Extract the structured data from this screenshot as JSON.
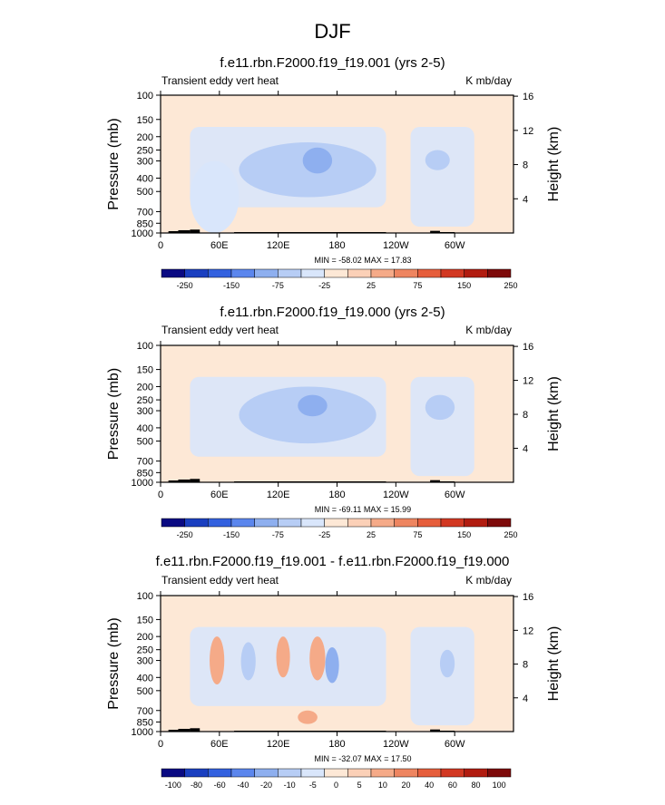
{
  "page": {
    "title": "DJF"
  },
  "chart_data": [
    {
      "type": "heatmap",
      "title": "f.e11.rbn.F2000.f19_f19.001 (yrs 2-5)",
      "left_label": "Transient eddy vert heat",
      "right_label": "K mb/day",
      "ylabel": "Pressure (mb)",
      "y2label": "Height (km)",
      "xticks": [
        "0",
        "60E",
        "120E",
        "180",
        "120W",
        "60W"
      ],
      "yticks": [
        "100",
        "150",
        "200",
        "250",
        "300",
        "400",
        "500",
        "700",
        "850",
        "1000"
      ],
      "y2ticks": [
        "16",
        "12",
        "8",
        "4"
      ],
      "min_max_text": "MIN = -58.02  MAX = 17.83",
      "colorbar": {
        "labels": [
          "-250",
          "-150",
          "-75",
          "-25",
          "25",
          "75",
          "150",
          "250"
        ],
        "colors": [
          "#0a0a82",
          "#1a3fc0",
          "#3361df",
          "#5b86ed",
          "#8eafef",
          "#b7cdf5",
          "#d9e6fb",
          "#fde8d6",
          "#fbd0b7",
          "#f5aa88",
          "#ee8560",
          "#e65e3c",
          "#d23822",
          "#b11c10",
          "#7d0a0a"
        ]
      },
      "xlim": [
        0,
        360
      ],
      "ylim": [
        1000,
        100
      ],
      "y_log_scale": true,
      "features": [
        {
          "lon": [
            80,
            220
          ],
          "p": [
            220,
            550
          ],
          "value": -10
        },
        {
          "lon": [
            145,
            175
          ],
          "p": [
            240,
            370
          ],
          "value": -30
        },
        {
          "lon": [
            270,
            295
          ],
          "p": [
            250,
            350
          ],
          "value": -10
        },
        {
          "lon": [
            30,
            80
          ],
          "p": [
            300,
            1000
          ],
          "value": -5
        }
      ]
    },
    {
      "type": "heatmap",
      "title": "f.e11.rbn.F2000.f19_f19.000 (yrs 2-5)",
      "left_label": "Transient eddy vert heat",
      "right_label": "K mb/day",
      "ylabel": "Pressure (mb)",
      "y2label": "Height (km)",
      "xticks": [
        "0",
        "60E",
        "120E",
        "180",
        "120W",
        "60W"
      ],
      "yticks": [
        "100",
        "150",
        "200",
        "250",
        "300",
        "400",
        "500",
        "700",
        "850",
        "1000"
      ],
      "y2ticks": [
        "16",
        "12",
        "8",
        "4"
      ],
      "min_max_text": "MIN = -69.11  MAX = 15.99",
      "colorbar": {
        "labels": [
          "-250",
          "-150",
          "-75",
          "-25",
          "25",
          "75",
          "150",
          "250"
        ],
        "colors": [
          "#0a0a82",
          "#1a3fc0",
          "#3361df",
          "#5b86ed",
          "#8eafef",
          "#b7cdf5",
          "#d9e6fb",
          "#fde8d6",
          "#fbd0b7",
          "#f5aa88",
          "#ee8560",
          "#e65e3c",
          "#d23822",
          "#b11c10",
          "#7d0a0a"
        ]
      },
      "xlim": [
        0,
        360
      ],
      "ylim": [
        1000,
        100
      ],
      "y_log_scale": true,
      "features": [
        {
          "lon": [
            80,
            220
          ],
          "p": [
            200,
            520
          ],
          "value": -10
        },
        {
          "lon": [
            140,
            170
          ],
          "p": [
            230,
            330
          ],
          "value": -30
        },
        {
          "lon": [
            270,
            300
          ],
          "p": [
            230,
            350
          ],
          "value": -10
        }
      ]
    },
    {
      "type": "heatmap",
      "title": "f.e11.rbn.F2000.f19_f19.001 - f.e11.rbn.F2000.f19_f19.000",
      "left_label": "Transient eddy vert heat",
      "right_label": "K mb/day",
      "ylabel": "Pressure (mb)",
      "y2label": "Height (km)",
      "xticks": [
        "0",
        "60E",
        "120E",
        "180",
        "120W",
        "60W"
      ],
      "yticks": [
        "100",
        "150",
        "200",
        "250",
        "300",
        "400",
        "500",
        "700",
        "850",
        "1000"
      ],
      "y2ticks": [
        "16",
        "12",
        "8",
        "4"
      ],
      "min_max_text": "MIN = -32.07  MAX = 17.50",
      "colorbar": {
        "labels": [
          "-100",
          "-80",
          "-60",
          "-40",
          "-20",
          "-10",
          "-5",
          "0",
          "5",
          "10",
          "20",
          "40",
          "60",
          "80",
          "100"
        ],
        "colors": [
          "#0a0a82",
          "#1a3fc0",
          "#3361df",
          "#5b86ed",
          "#8eafef",
          "#b7cdf5",
          "#d9e6fb",
          "#fde8d6",
          "#fbd0b7",
          "#f5aa88",
          "#ee8560",
          "#e65e3c",
          "#d23822",
          "#b11c10",
          "#7d0a0a"
        ]
      },
      "xlim": [
        0,
        360
      ],
      "ylim": [
        1000,
        100
      ],
      "y_log_scale": true,
      "features": [
        {
          "lon": [
            50,
            65
          ],
          "p": [
            200,
            450
          ],
          "value": 10
        },
        {
          "lon": [
            82,
            97
          ],
          "p": [
            220,
            420
          ],
          "value": -20
        },
        {
          "lon": [
            118,
            132
          ],
          "p": [
            200,
            400
          ],
          "value": 10
        },
        {
          "lon": [
            152,
            168
          ],
          "p": [
            200,
            420
          ],
          "value": 10
        },
        {
          "lon": [
            168,
            182
          ],
          "p": [
            240,
            440
          ],
          "value": -30
        },
        {
          "lon": [
            140,
            160
          ],
          "p": [
            700,
            880
          ],
          "value": 10
        },
        {
          "lon": [
            285,
            300
          ],
          "p": [
            250,
            400
          ],
          "value": -10
        }
      ]
    }
  ],
  "colors": {
    "background_fill": "#fde8d6",
    "terrain": "#000000"
  }
}
